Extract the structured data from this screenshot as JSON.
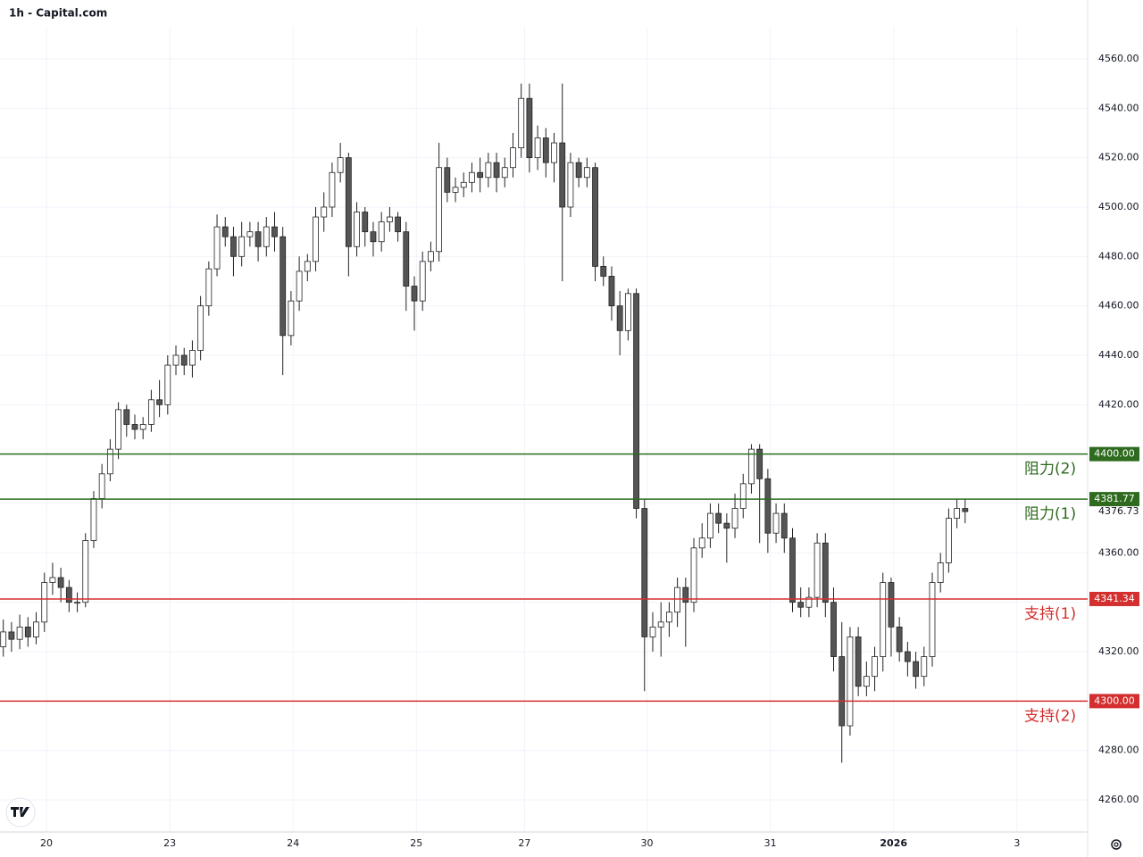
{
  "chart_data": {
    "type": "candlestick",
    "title": "1h - Capital.com",
    "open": [
      4322,
      4328,
      4325,
      4330,
      4326,
      4332,
      4348,
      4350,
      4346,
      4340,
      4340,
      4365,
      4382,
      4392,
      4402,
      4418,
      4412,
      4410,
      4412,
      4422,
      4420,
      4436,
      4440,
      4436,
      4442,
      4460,
      4475,
      4492,
      4488,
      4480,
      4488,
      4490,
      4484,
      4492,
      4488,
      4448,
      4462,
      4474,
      4478,
      4496,
      4500,
      4514,
      4520,
      4484,
      4498,
      4490,
      4486,
      4494,
      4496,
      4490,
      4468,
      4462,
      4478,
      4482,
      4516,
      4506,
      4508,
      4510,
      4514,
      4512,
      4518,
      4512,
      4516,
      4524,
      4544,
      4520,
      4528,
      4518,
      4526,
      4500,
      4518,
      4512,
      4516,
      4476,
      4472,
      4460,
      4450,
      4465,
      4378,
      4326,
      4330,
      4332,
      4336,
      4346,
      4340,
      4362,
      4366,
      4376,
      4372,
      4370,
      4378,
      4388,
      4402,
      4390,
      4368,
      4376,
      4366,
      4340,
      4338,
      4342,
      4364,
      4340,
      4318,
      4290,
      4326,
      4306,
      4310,
      4318,
      4348,
      4330,
      4320,
      4316,
      4310,
      4318,
      4348,
      4356,
      4374,
      4378
    ],
    "high": [
      4333,
      4332,
      4335,
      4334,
      4336,
      4352,
      4356,
      4354,
      4349,
      4344,
      4368,
      4385,
      4396,
      4406,
      4421,
      4420,
      4416,
      4415,
      4426,
      4430,
      4440,
      4444,
      4443,
      4446,
      4464,
      4478,
      4497,
      4496,
      4492,
      4494,
      4494,
      4494,
      4496,
      4498,
      4492,
      4466,
      4480,
      4481,
      4500,
      4506,
      4518,
      4526,
      4522,
      4502,
      4500,
      4494,
      4498,
      4500,
      4498,
      4494,
      4472,
      4482,
      4486,
      4526,
      4520,
      4512,
      4514,
      4518,
      4520,
      4522,
      4522,
      4520,
      4530,
      4550,
      4550,
      4533,
      4532,
      4530,
      4550,
      4522,
      4520,
      4520,
      4518,
      4480,
      4476,
      4466,
      4467,
      4467,
      4382,
      4336,
      4340,
      4340,
      4350,
      4350,
      4366,
      4372,
      4380,
      4380,
      4376,
      4384,
      4392,
      4404,
      4404,
      4394,
      4380,
      4380,
      4370,
      4346,
      4346,
      4368,
      4368,
      4346,
      4332,
      4330,
      4330,
      4316,
      4322,
      4352,
      4350,
      4334,
      4324,
      4320,
      4322,
      4352,
      4360,
      4378,
      4382,
      4381.8
    ],
    "low": [
      4318,
      4320,
      4321,
      4322,
      4323,
      4328,
      4343,
      4340,
      4336,
      4336,
      4338,
      4362,
      4378,
      4389,
      4398,
      4407,
      4406,
      4406,
      4409,
      4415,
      4416,
      4432,
      4432,
      4431,
      4438,
      4456,
      4472,
      4484,
      4472,
      4476,
      4484,
      4478,
      4480,
      4482,
      4432,
      4444,
      4458,
      4470,
      4474,
      4490,
      4496,
      4510,
      4472,
      4480,
      4484,
      4480,
      4482,
      4490,
      4486,
      4458,
      4450,
      4458,
      4474,
      4478,
      4502,
      4502,
      4504,
      4506,
      4506,
      4508,
      4506,
      4508,
      4512,
      4520,
      4514,
      4515,
      4512,
      4510,
      4470,
      4496,
      4508,
      4508,
      4470,
      4468,
      4454,
      4440,
      4446,
      4374,
      4304,
      4320,
      4318,
      4326,
      4330,
      4322,
      4336,
      4358,
      4362,
      4368,
      4356,
      4366,
      4374,
      4384,
      4364,
      4360,
      4364,
      4360,
      4336,
      4334,
      4334,
      4338,
      4334,
      4312,
      4275,
      4286,
      4302,
      4302,
      4304,
      4312,
      4318,
      4316,
      4310,
      4305,
      4306,
      4314,
      4344,
      4352,
      4370,
      4372
    ],
    "close": [
      4328,
      4325,
      4330,
      4326,
      4332,
      4348,
      4350,
      4346,
      4340,
      4340,
      4365,
      4382,
      4392,
      4402,
      4418,
      4412,
      4410,
      4412,
      4422,
      4420,
      4436,
      4440,
      4436,
      4442,
      4460,
      4475,
      4492,
      4488,
      4480,
      4488,
      4490,
      4484,
      4492,
      4488,
      4448,
      4462,
      4474,
      4478,
      4496,
      4500,
      4514,
      4520,
      4484,
      4498,
      4490,
      4486,
      4494,
      4496,
      4490,
      4468,
      4462,
      4478,
      4482,
      4516,
      4506,
      4508,
      4510,
      4514,
      4512,
      4518,
      4512,
      4516,
      4524,
      4544,
      4520,
      4528,
      4518,
      4526,
      4500,
      4518,
      4512,
      4516,
      4476,
      4472,
      4460,
      4450,
      4465,
      4378,
      4326,
      4330,
      4332,
      4336,
      4346,
      4340,
      4362,
      4366,
      4376,
      4372,
      4370,
      4378,
      4388,
      4402,
      4390,
      4368,
      4376,
      4366,
      4340,
      4338,
      4342,
      4364,
      4340,
      4318,
      4290,
      4326,
      4306,
      4310,
      4318,
      4348,
      4330,
      4320,
      4316,
      4310,
      4318,
      4348,
      4356,
      4374,
      4378,
      4376.73
    ],
    "up_color": "#ffffff",
    "down_color": "#555555",
    "xlim": [
      -0.4,
      131.9
    ],
    "xticks": [
      {
        "value": 5.25,
        "label": "20"
      },
      {
        "value": 20.25,
        "label": "23"
      },
      {
        "value": 35.25,
        "label": "24"
      },
      {
        "value": 50.25,
        "label": "25"
      },
      {
        "value": 63.4,
        "label": "27"
      },
      {
        "value": 78.3,
        "label": "30"
      },
      {
        "value": 93.3,
        "label": "31"
      },
      {
        "value": 108.3,
        "label": "2026"
      },
      {
        "value": 123.3,
        "label": "3"
      }
    ],
    "ylim": [
      4247,
      4573
    ],
    "yticks": [
      {
        "value": 4260,
        "label": "4260.00"
      },
      {
        "value": 4280,
        "label": "4280.00"
      },
      {
        "value": 4300,
        "label": "4300.00"
      },
      {
        "value": 4320,
        "label": "4320.00"
      },
      {
        "value": 4340,
        "label": "4340.00"
      },
      {
        "value": 4360,
        "label": "4360.00"
      },
      {
        "value": 4380,
        "label": "4380.00"
      },
      {
        "value": 4400,
        "label": "4400.00"
      },
      {
        "value": 4420,
        "label": "4420.00"
      },
      {
        "value": 4440,
        "label": "4440.00"
      },
      {
        "value": 4460,
        "label": "4460.00"
      },
      {
        "value": 4480,
        "label": "4480.00"
      },
      {
        "value": 4500,
        "label": "4500.00"
      },
      {
        "value": 4520,
        "label": "4520.00"
      },
      {
        "value": 4540,
        "label": "4540.00"
      },
      {
        "value": 4560,
        "label": "4560.00"
      }
    ],
    "grid": true,
    "levels": {
      "names": [
        "阻力(2)",
        "阻力(1)",
        "支持(1)",
        "支持(2)"
      ],
      "values": [
        4400,
        4381.77,
        4341.34,
        4300
      ],
      "value_labels": [
        "4400.00",
        "4381.77",
        "4341.34",
        "4300.00"
      ],
      "colors": [
        "#2e6b1f",
        "#2e6b1f",
        "#d32f2f",
        "#d32f2f"
      ]
    },
    "last_price": {
      "value": 4376.73,
      "label": "4376.73"
    }
  }
}
